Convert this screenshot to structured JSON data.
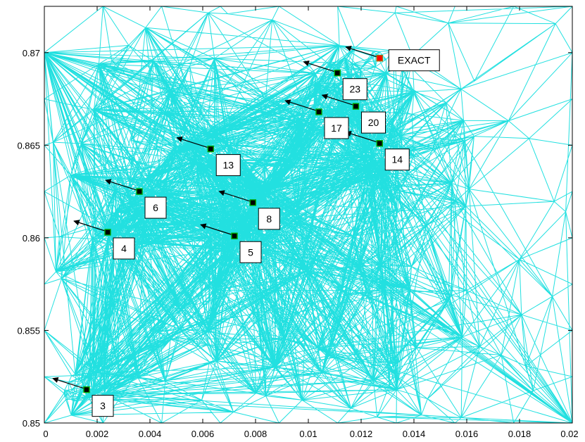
{
  "chart_data": {
    "type": "scatter",
    "title": "",
    "xlabel": "",
    "ylabel": "",
    "xlim": [
      0,
      0.02
    ],
    "ylim": [
      0.85,
      0.8725
    ],
    "x_ticks": [
      "0",
      "0.002",
      "0.004",
      "0.006",
      "0.008",
      "0.01",
      "0.012",
      "0.014",
      "0.016",
      "0.018",
      "0.02"
    ],
    "y_ticks": [
      "0.85",
      "0.855",
      "0.86",
      "0.865",
      "0.87"
    ],
    "x_tick_values": [
      0,
      0.002,
      0.004,
      0.006,
      0.008,
      0.01,
      0.012,
      0.014,
      0.016,
      0.018,
      0.02
    ],
    "y_tick_values": [
      0.85,
      0.855,
      0.86,
      0.865,
      0.87
    ],
    "background": "triangular mesh",
    "colors": {
      "mesh": "#22e0e0",
      "marker_face": "#000000",
      "marker_edge": "#00aa00",
      "exact_marker_face": "#ff0000",
      "arrow": "#000000"
    },
    "points": [
      {
        "label": "3",
        "x": 0.0016,
        "y": 0.8518
      },
      {
        "label": "4",
        "x": 0.0024,
        "y": 0.8603
      },
      {
        "label": "5",
        "x": 0.0072,
        "y": 0.8601
      },
      {
        "label": "6",
        "x": 0.0036,
        "y": 0.8625
      },
      {
        "label": "8",
        "x": 0.0079,
        "y": 0.8619
      },
      {
        "label": "13",
        "x": 0.0063,
        "y": 0.8648
      },
      {
        "label": "14",
        "x": 0.0127,
        "y": 0.8651
      },
      {
        "label": "17",
        "x": 0.0104,
        "y": 0.8668
      },
      {
        "label": "20",
        "x": 0.0118,
        "y": 0.8671
      },
      {
        "label": "23",
        "x": 0.0111,
        "y": 0.8689
      },
      {
        "label": "EXACT",
        "x": 0.0127,
        "y": 0.8697,
        "exact": true
      }
    ]
  }
}
